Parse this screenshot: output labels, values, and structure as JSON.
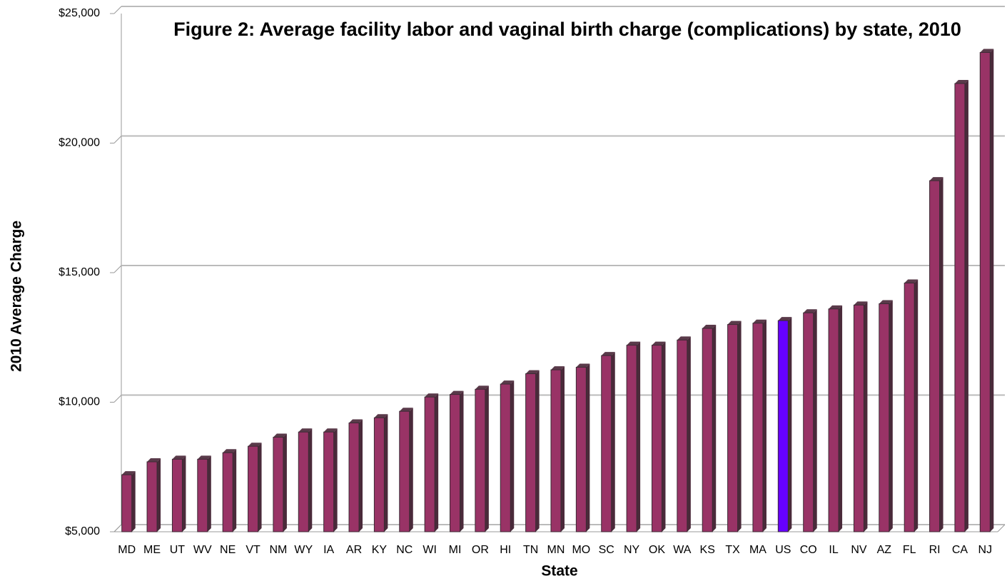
{
  "chart_data": {
    "type": "bar3d",
    "title": "Figure 2: Average facility labor and vaginal birth charge (complications) by state, 2010",
    "x_label": "State",
    "y_label": "2010 Average Charge",
    "categories": [
      "MD",
      "ME",
      "UT",
      "WV",
      "NE",
      "VT",
      "NM",
      "WY",
      "IA",
      "AR",
      "KY",
      "NC",
      "WI",
      "MI",
      "OR",
      "HI",
      "TN",
      "MN",
      "MO",
      "SC",
      "NY",
      "OK",
      "WA",
      "KS",
      "TX",
      "MA",
      "US",
      "CO",
      "IL",
      "NV",
      "AZ",
      "FL",
      "RI",
      "CA",
      "NJ"
    ],
    "values": [
      7200,
      7700,
      7800,
      7800,
      8050,
      8300,
      8650,
      8850,
      8850,
      9200,
      9400,
      9650,
      10200,
      10300,
      10500,
      10700,
      11100,
      11250,
      11350,
      11800,
      12200,
      12200,
      12400,
      12850,
      13000,
      13050,
      13150,
      13450,
      13600,
      13750,
      13800,
      14600,
      18550,
      22300,
      23500
    ],
    "colors": [
      "#993366",
      "#993366",
      "#993366",
      "#993366",
      "#993366",
      "#993366",
      "#993366",
      "#993366",
      "#993366",
      "#993366",
      "#993366",
      "#993366",
      "#993366",
      "#993366",
      "#993366",
      "#993366",
      "#993366",
      "#993366",
      "#993366",
      "#993366",
      "#993366",
      "#993366",
      "#993366",
      "#993366",
      "#993366",
      "#993366",
      "#6600ff",
      "#993366",
      "#993366",
      "#993366",
      "#993366",
      "#993366",
      "#993366",
      "#993366",
      "#993366"
    ],
    "ylim": [
      5000,
      25000
    ],
    "yticks": [
      {
        "value": 5000,
        "label": "$5,000"
      },
      {
        "value": 10000,
        "label": "$10,000"
      },
      {
        "value": 15000,
        "label": "$15,000"
      },
      {
        "value": 20000,
        "label": "$20,000"
      },
      {
        "value": 25000,
        "label": "$25,000"
      }
    ],
    "grid": true
  }
}
